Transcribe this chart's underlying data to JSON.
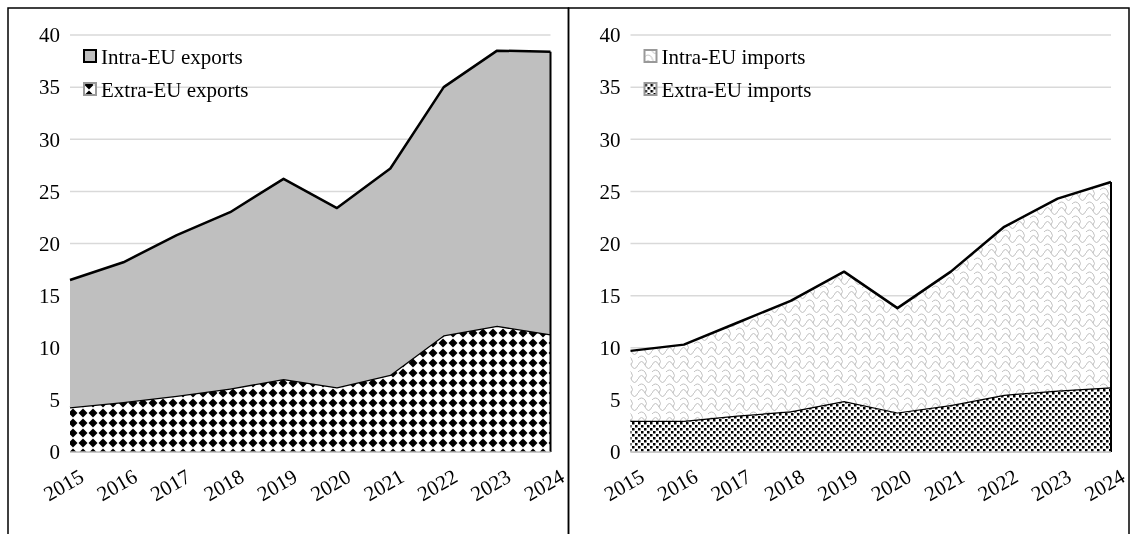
{
  "chart_data": [
    {
      "type": "area",
      "stacked": true,
      "categories": [
        "2015",
        "2016",
        "2017",
        "2018",
        "2019",
        "2020",
        "2021",
        "2022",
        "2023",
        "2024"
      ],
      "ylim": [
        0,
        40
      ],
      "yticks": [
        0,
        5,
        10,
        15,
        20,
        25,
        30,
        35,
        40
      ],
      "grid": "y",
      "legend": "top left",
      "series": [
        {
          "name": "Extra-EU exports",
          "color": "#000000",
          "values": [
            4.3,
            4.8,
            5.4,
            6.1,
            7.0,
            6.2,
            7.4,
            11.2,
            12.1,
            11.3
          ]
        },
        {
          "name": "Intra-EU exports",
          "color": "#bfbfbf",
          "values": [
            12.2,
            13.4,
            15.4,
            16.9,
            19.2,
            17.2,
            19.8,
            23.8,
            26.4,
            27.1
          ]
        }
      ]
    },
    {
      "type": "area",
      "stacked": true,
      "categories": [
        "2015",
        "2016",
        "2017",
        "2018",
        "2019",
        "2020",
        "2021",
        "2022",
        "2023",
        "2024"
      ],
      "ylim": [
        0,
        40
      ],
      "yticks": [
        0,
        5,
        10,
        15,
        20,
        25,
        30,
        35,
        40
      ],
      "grid": "y",
      "legend": "top left",
      "series": [
        {
          "name": "Extra-EU imports",
          "color": "#000000",
          "values": [
            3.0,
            3.0,
            3.5,
            3.9,
            4.9,
            3.8,
            4.5,
            5.5,
            5.9,
            6.2
          ]
        },
        {
          "name": "Intra-EU imports",
          "color": "#c0c0c0",
          "values": [
            6.7,
            7.3,
            8.9,
            10.6,
            12.4,
            10.0,
            12.8,
            16.1,
            18.4,
            19.7
          ]
        }
      ]
    }
  ]
}
